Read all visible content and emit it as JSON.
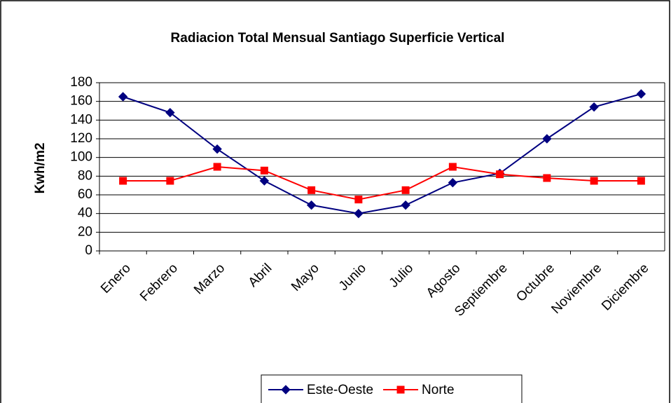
{
  "chart_data": {
    "type": "line",
    "title": "Radiacion Total Mensual Santiago Superficie Vertical",
    "y_label": "Kwh/m2",
    "categories": [
      "Enero",
      "Febrero",
      "Marzo",
      "Abril",
      "Mayo",
      "Junio",
      "Julio",
      "Agosto",
      "Septiembre",
      "Octubre",
      "Noviembre",
      "Diciembre"
    ],
    "series": [
      {
        "name": "Este-Oeste",
        "color": "#000080",
        "marker": "diamond",
        "values": [
          165,
          148,
          109,
          75,
          49,
          40,
          49,
          73,
          83,
          120,
          154,
          168
        ]
      },
      {
        "name": "Norte",
        "color": "#ff0000",
        "marker": "square",
        "values": [
          75,
          75,
          90,
          86,
          65,
          55,
          65,
          90,
          82,
          78,
          75,
          75
        ]
      }
    ],
    "ylim": [
      0,
      180
    ],
    "yticks": [
      0,
      20,
      40,
      60,
      80,
      100,
      120,
      140,
      160,
      180
    ],
    "grid": true,
    "legend": "bottom"
  }
}
